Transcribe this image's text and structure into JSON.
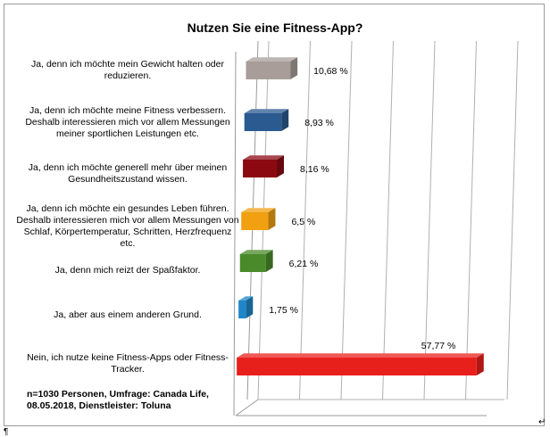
{
  "chart_data": {
    "type": "bar",
    "orientation": "horizontal",
    "title": "Nutzen Sie eine Fitness-App?",
    "categories": [
      "Ja, denn ich möchte mein Gewicht halten oder reduzieren.",
      "Ja, denn ich möchte meine Fitness verbessern. Deshalb interessieren mich vor allem Messungen meiner sportlichen Leistungen etc.",
      "Ja, denn ich möchte generell mehr über meinen Gesundheitszustand wissen.",
      "Ja, denn ich möchte ein gesundes Leben führen. Deshalb interessieren mich vor allem Messungen von Schlaf, Körpertemperatur, Schritten, Herzfrequenz etc.",
      "Ja, denn mich reizt der Spaßfaktor.",
      "Ja, aber aus einem anderen Grund.",
      "Nein, ich nutze keine Fitness-Apps oder Fitness-Tracker."
    ],
    "values": [
      10.68,
      8.93,
      8.16,
      6.5,
      6.21,
      1.75,
      57.77
    ],
    "value_labels": [
      "10,68 %",
      "8,93 %",
      "8,16 %",
      "6,5 %",
      "6,21 %",
      "1,75 %",
      "57,77 %"
    ],
    "colors": [
      "#a89d98",
      "#2a5a8f",
      "#8b0a12",
      "#f0a010",
      "#4a8a2a",
      "#1f86c8",
      "#e8201c"
    ],
    "xlim": [
      0,
      60
    ],
    "gridlines": true,
    "legend": "none",
    "note": "n=1030 Personen,  Umfrage: Canada Life, 08.05.2018, Dienstleister: Toluna"
  },
  "marks": {
    "pilcrow": "¶",
    "return_arrow": "↵"
  }
}
